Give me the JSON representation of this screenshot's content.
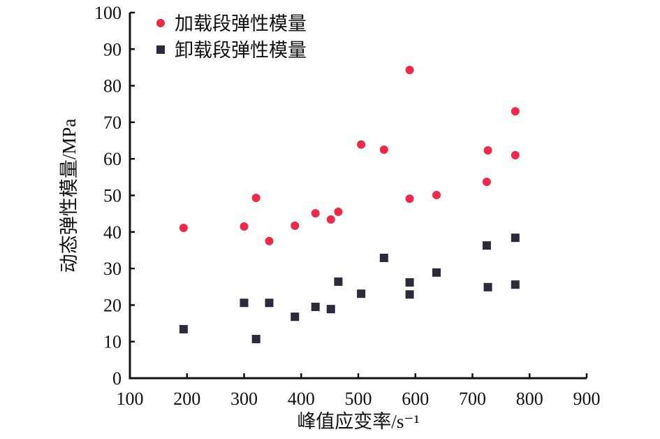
{
  "chart_data": {
    "type": "scatter",
    "title": "",
    "xlabel": "峰值应变率/s⁻¹",
    "ylabel": "动态弹性模量/MPa",
    "xlim": [
      100,
      900
    ],
    "ylim": [
      0,
      100
    ],
    "xticks": [
      "100",
      "200",
      "300",
      "400",
      "500",
      "600",
      "700",
      "800",
      "900"
    ],
    "yticks": [
      "0",
      "10",
      "20",
      "30",
      "40",
      "50",
      "60",
      "70",
      "80",
      "90",
      "100"
    ],
    "grid": false,
    "legend_position": "top-left",
    "series": [
      {
        "name": "加载段弹性模量",
        "marker": "circle",
        "color": "#f0284a",
        "points": [
          [
            194,
            41.1
          ],
          [
            300,
            41.5
          ],
          [
            321,
            49.3
          ],
          [
            344,
            37.5
          ],
          [
            389,
            41.7
          ],
          [
            425,
            45.1
          ],
          [
            452,
            43.4
          ],
          [
            465,
            45.5
          ],
          [
            505,
            63.9
          ],
          [
            545,
            62.5
          ],
          [
            590,
            84.3
          ],
          [
            590,
            49.1
          ],
          [
            637,
            50.1
          ],
          [
            725,
            53.7
          ],
          [
            727,
            62.3
          ],
          [
            775,
            73.0
          ],
          [
            775,
            61.0
          ]
        ]
      },
      {
        "name": "卸载段弹性模量",
        "marker": "square",
        "color": "#2b2b3b",
        "points": [
          [
            194,
            13.4
          ],
          [
            300,
            20.6
          ],
          [
            321,
            10.7
          ],
          [
            344,
            20.6
          ],
          [
            389,
            16.8
          ],
          [
            425,
            19.5
          ],
          [
            452,
            18.9
          ],
          [
            465,
            26.4
          ],
          [
            505,
            23.1
          ],
          [
            545,
            32.9
          ],
          [
            590,
            26.2
          ],
          [
            590,
            22.9
          ],
          [
            637,
            28.9
          ],
          [
            725,
            36.3
          ],
          [
            727,
            24.9
          ],
          [
            775,
            25.6
          ],
          [
            775,
            38.4
          ]
        ]
      }
    ]
  }
}
